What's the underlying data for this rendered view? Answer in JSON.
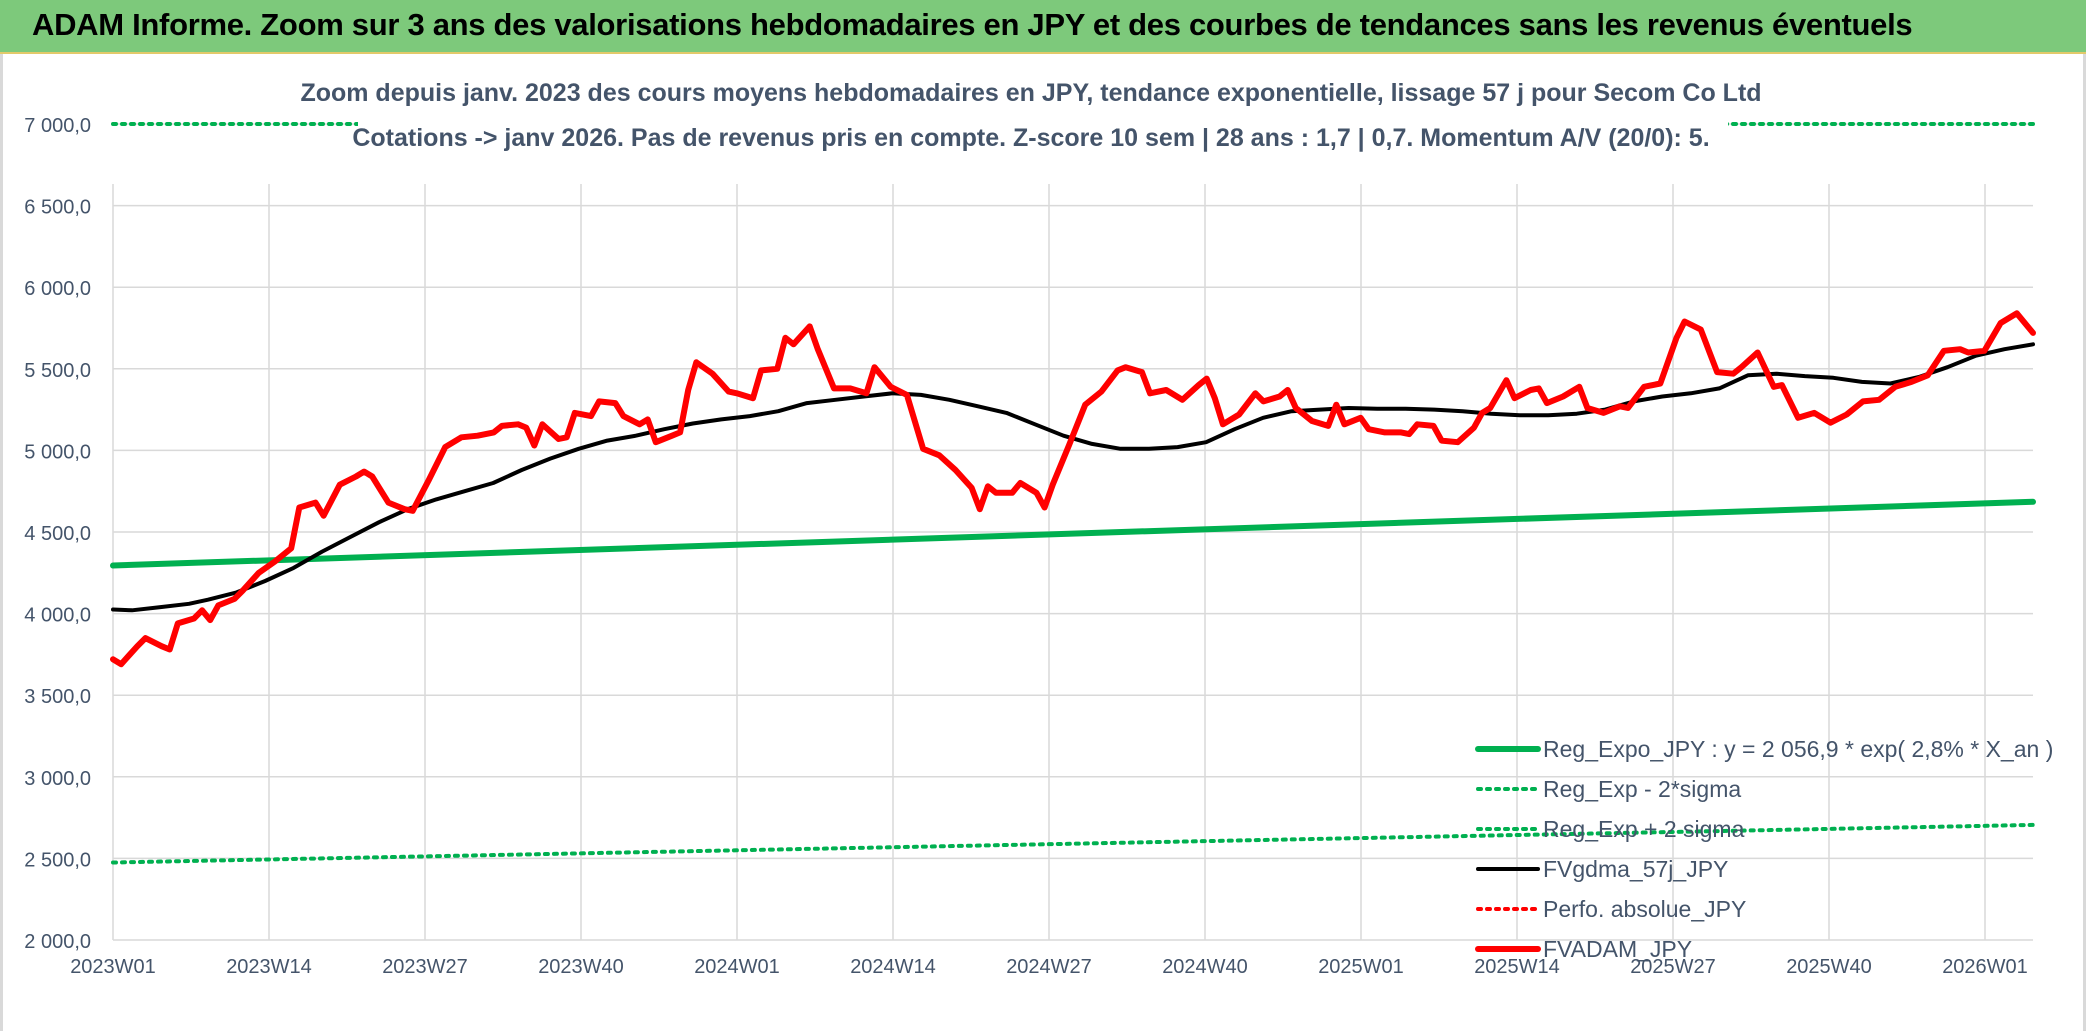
{
  "banner": {
    "title": "ADAM Informe. Zoom sur 3 ans des valorisations hebdomadaires en JPY et des courbes de tendances sans les revenus éventuels"
  },
  "colors": {
    "banner": "#7dc97b",
    "reg_expo": "#00b050",
    "sigma_lines": "#00b050",
    "fvgdma": "#000000",
    "fvadam": "#ff0000",
    "perfo": "#ff0000",
    "grid": "#d9d9d9",
    "text": "#44546a"
  },
  "chart_data": {
    "type": "line",
    "title": "Zoom depuis janv. 2023 des cours moyens hebdomadaires en JPY, tendance exponentielle, lissage 57 j pour Secom Co Ltd",
    "subtitle": "Cotations -> janv 2026. Pas de revenus pris en compte. Z-score 10 sem | 28 ans : 1,7  | 0,7. Momentum A/V (20/0): 5.",
    "xlabel": "",
    "ylabel": "",
    "ylim": [
      2000,
      7000
    ],
    "yticks": [
      "2 000,0",
      "2 500,0",
      "3 000,0",
      "3 500,0",
      "4 000,0",
      "4 500,0",
      "5 000,0",
      "5 500,0",
      "6 000,0",
      "6 500,0",
      "7 000,0"
    ],
    "x_tick_labels": [
      "2023W01",
      "2023W14",
      "2023W27",
      "2023W40",
      "2024W01",
      "2024W14",
      "2024W27",
      "2024W40",
      "2025W01",
      "2025W14",
      "2025W27",
      "2025W40",
      "2026W01"
    ],
    "x_weeks_total": 162,
    "grid": true,
    "legend_position": "bottom-right",
    "series": [
      {
        "name": "Reg_Expo_JPY : y = 2 056,9 * exp( 2,8% *  X_an )",
        "style": "solid-thick",
        "color": "#00b050",
        "keypoints": [
          [
            0,
            4295
          ],
          [
            162,
            4685
          ]
        ]
      },
      {
        "name": "Reg_Exp - 2*sigma",
        "style": "dotted",
        "color": "#00b050",
        "keypoints": [
          [
            0,
            2475
          ],
          [
            162,
            2705
          ]
        ]
      },
      {
        "name": "Reg_Exp + 2 sigma",
        "style": "dotted",
        "color": "#00b050",
        "keypoints": [
          [
            0,
            7000
          ],
          [
            162,
            7000
          ]
        ]
      },
      {
        "name": "FVgdma_57j_JPY",
        "style": "solid",
        "color": "#000000",
        "keypoints": [
          [
            0,
            4025
          ],
          [
            2,
            4020
          ],
          [
            5,
            4040
          ],
          [
            8,
            4060
          ],
          [
            10,
            4085
          ],
          [
            13,
            4130
          ],
          [
            16,
            4200
          ],
          [
            19,
            4280
          ],
          [
            22,
            4380
          ],
          [
            25,
            4470
          ],
          [
            28,
            4560
          ],
          [
            31,
            4640
          ],
          [
            34,
            4700
          ],
          [
            37,
            4750
          ],
          [
            40,
            4800
          ],
          [
            43,
            4880
          ],
          [
            46,
            4950
          ],
          [
            49,
            5010
          ],
          [
            52,
            5060
          ],
          [
            55,
            5090
          ],
          [
            58,
            5130
          ],
          [
            61,
            5165
          ],
          [
            64,
            5190
          ],
          [
            67,
            5210
          ],
          [
            70,
            5240
          ],
          [
            73,
            5290
          ],
          [
            76,
            5310
          ],
          [
            79,
            5330
          ],
          [
            82,
            5350
          ],
          [
            85,
            5340
          ],
          [
            88,
            5310
          ],
          [
            91,
            5270
          ],
          [
            94,
            5230
          ],
          [
            97,
            5160
          ],
          [
            100,
            5090
          ],
          [
            103,
            5040
          ],
          [
            106,
            5010
          ],
          [
            109,
            5010
          ],
          [
            112,
            5020
          ],
          [
            115,
            5050
          ],
          [
            118,
            5130
          ],
          [
            121,
            5200
          ],
          [
            124,
            5240
          ],
          [
            127,
            5250
          ],
          [
            130,
            5260
          ],
          [
            133,
            5255
          ],
          [
            136,
            5255
          ],
          [
            139,
            5250
          ],
          [
            142,
            5240
          ],
          [
            145,
            5225
          ],
          [
            148,
            5215
          ],
          [
            151,
            5215
          ],
          [
            154,
            5225
          ],
          [
            157,
            5250
          ],
          [
            160,
            5300
          ],
          [
            163,
            5330
          ],
          [
            166,
            5350
          ],
          [
            169,
            5380
          ],
          [
            172,
            5460
          ],
          [
            175,
            5470
          ],
          [
            178,
            5455
          ],
          [
            181,
            5445
          ],
          [
            184,
            5420
          ],
          [
            187,
            5410
          ],
          [
            190,
            5450
          ],
          [
            193,
            5510
          ],
          [
            196,
            5580
          ],
          [
            199,
            5620
          ],
          [
            202,
            5650
          ]
        ]
      },
      {
        "name": "Perfo. absolue_JPY",
        "style": "dotted",
        "color": "#ff0000",
        "keypoints": []
      },
      {
        "name": "FVADAM_JPY",
        "style": "solid-thick",
        "color": "#ff0000",
        "keypoints": [
          [
            0,
            3720
          ],
          [
            1,
            3690
          ],
          [
            3,
            3800
          ],
          [
            4,
            3850
          ],
          [
            6,
            3800
          ],
          [
            7,
            3780
          ],
          [
            8,
            3940
          ],
          [
            10,
            3970
          ],
          [
            11,
            4020
          ],
          [
            12,
            3960
          ],
          [
            13,
            4050
          ],
          [
            15,
            4090
          ],
          [
            16,
            4140
          ],
          [
            18,
            4250
          ],
          [
            20,
            4320
          ],
          [
            22,
            4400
          ],
          [
            23,
            4650
          ],
          [
            25,
            4680
          ],
          [
            26,
            4600
          ],
          [
            28,
            4790
          ],
          [
            30,
            4840
          ],
          [
            31,
            4870
          ],
          [
            32,
            4840
          ],
          [
            34,
            4680
          ],
          [
            36,
            4640
          ],
          [
            37,
            4630
          ],
          [
            39,
            4820
          ],
          [
            41,
            5020
          ],
          [
            43,
            5080
          ],
          [
            45,
            5090
          ],
          [
            47,
            5110
          ],
          [
            48,
            5150
          ],
          [
            50,
            5160
          ],
          [
            51,
            5140
          ],
          [
            52,
            5030
          ],
          [
            53,
            5160
          ],
          [
            55,
            5070
          ],
          [
            56,
            5080
          ],
          [
            57,
            5230
          ],
          [
            59,
            5210
          ],
          [
            60,
            5300
          ],
          [
            62,
            5290
          ],
          [
            63,
            5210
          ],
          [
            65,
            5160
          ],
          [
            66,
            5190
          ],
          [
            67,
            5050
          ],
          [
            69,
            5090
          ],
          [
            70,
            5110
          ],
          [
            71,
            5370
          ],
          [
            72,
            5540
          ],
          [
            74,
            5470
          ],
          [
            76,
            5360
          ],
          [
            77,
            5350
          ],
          [
            79,
            5320
          ],
          [
            80,
            5490
          ],
          [
            82,
            5500
          ],
          [
            83,
            5690
          ],
          [
            84,
            5650
          ],
          [
            86,
            5760
          ],
          [
            87,
            5620
          ],
          [
            89,
            5380
          ],
          [
            91,
            5380
          ],
          [
            93,
            5350
          ],
          [
            94,
            5510
          ],
          [
            96,
            5390
          ],
          [
            98,
            5340
          ],
          [
            100,
            5010
          ],
          [
            102,
            4970
          ],
          [
            104,
            4880
          ],
          [
            106,
            4770
          ],
          [
            107,
            4640
          ],
          [
            108,
            4780
          ],
          [
            109,
            4740
          ],
          [
            111,
            4740
          ],
          [
            112,
            4800
          ],
          [
            114,
            4740
          ],
          [
            115,
            4650
          ],
          [
            116,
            4790
          ],
          [
            118,
            5030
          ],
          [
            120,
            5280
          ],
          [
            122,
            5360
          ],
          [
            124,
            5490
          ],
          [
            125,
            5510
          ],
          [
            127,
            5480
          ],
          [
            128,
            5350
          ],
          [
            130,
            5370
          ],
          [
            132,
            5310
          ],
          [
            134,
            5400
          ],
          [
            135,
            5440
          ],
          [
            136,
            5320
          ],
          [
            137,
            5160
          ],
          [
            139,
            5220
          ],
          [
            141,
            5350
          ],
          [
            142,
            5300
          ],
          [
            144,
            5330
          ],
          [
            145,
            5370
          ],
          [
            146,
            5260
          ],
          [
            148,
            5180
          ],
          [
            150,
            5150
          ],
          [
            151,
            5280
          ],
          [
            152,
            5160
          ],
          [
            154,
            5200
          ],
          [
            155,
            5130
          ],
          [
            157,
            5110
          ],
          [
            159,
            5110
          ],
          [
            160,
            5100
          ],
          [
            161,
            5160
          ],
          [
            163,
            5150
          ],
          [
            164,
            5060
          ],
          [
            166,
            5050
          ],
          [
            168,
            5140
          ],
          [
            169,
            5230
          ],
          [
            170,
            5260
          ],
          [
            172,
            5430
          ],
          [
            173,
            5320
          ],
          [
            175,
            5370
          ],
          [
            176,
            5380
          ],
          [
            177,
            5290
          ],
          [
            179,
            5330
          ],
          [
            181,
            5390
          ],
          [
            182,
            5260
          ],
          [
            184,
            5230
          ],
          [
            186,
            5270
          ],
          [
            187,
            5260
          ],
          [
            189,
            5390
          ],
          [
            191,
            5410
          ],
          [
            193,
            5690
          ],
          [
            194,
            5790
          ],
          [
            196,
            5740
          ],
          [
            198,
            5480
          ],
          [
            200,
            5470
          ],
          [
            201,
            5510
          ],
          [
            203,
            5600
          ],
          [
            205,
            5390
          ],
          [
            206,
            5400
          ],
          [
            208,
            5200
          ],
          [
            210,
            5230
          ],
          [
            212,
            5170
          ],
          [
            214,
            5220
          ],
          [
            216,
            5300
          ],
          [
            218,
            5310
          ],
          [
            220,
            5390
          ],
          [
            222,
            5420
          ],
          [
            224,
            5460
          ],
          [
            226,
            5610
          ],
          [
            228,
            5620
          ],
          [
            229,
            5600
          ],
          [
            231,
            5610
          ],
          [
            233,
            5780
          ],
          [
            235,
            5840
          ],
          [
            237,
            5720
          ]
        ]
      }
    ]
  }
}
